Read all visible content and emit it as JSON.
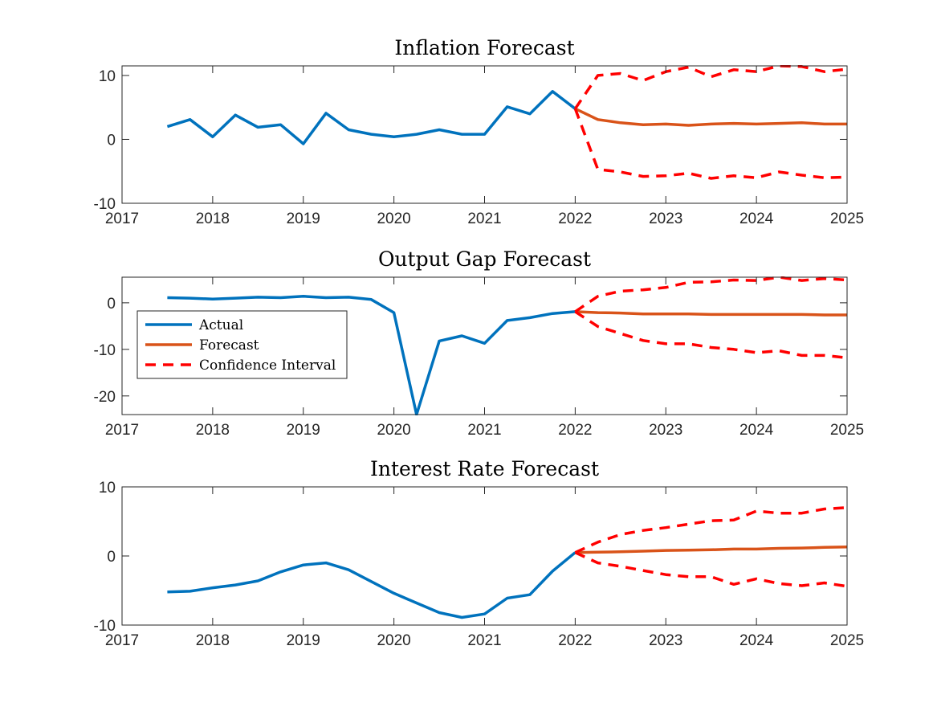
{
  "chart_data": [
    {
      "type": "line",
      "title": "Inflation Forecast",
      "xlabel": "",
      "ylabel": "",
      "xlim": [
        2017,
        2025
      ],
      "ylim": [
        -10,
        11.5
      ],
      "xticks": [
        "2017",
        "2018",
        "2019",
        "2020",
        "2021",
        "2022",
        "2023",
        "2024",
        "2025"
      ],
      "yticks": [
        -10,
        0,
        10
      ],
      "ytick_labels": [
        "-10",
        "0",
        "10"
      ],
      "grid": false,
      "series": [
        {
          "name": "Actual",
          "color": "#0072BD",
          "style": "solid",
          "x": [
            2017.5,
            2017.75,
            2018.0,
            2018.25,
            2018.5,
            2018.75,
            2019.0,
            2019.25,
            2019.5,
            2019.75,
            2020.0,
            2020.25,
            2020.5,
            2020.75,
            2021.0,
            2021.25,
            2021.5,
            2021.75,
            2022.0
          ],
          "y": [
            2.0,
            3.1,
            0.4,
            3.8,
            1.9,
            2.3,
            -0.7,
            4.1,
            1.5,
            0.8,
            0.4,
            0.8,
            1.5,
            0.8,
            0.8,
            5.1,
            4.0,
            7.5,
            4.8
          ]
        },
        {
          "name": "Forecast",
          "color": "#D95319",
          "style": "solid",
          "x": [
            2022.0,
            2022.25,
            2022.5,
            2022.75,
            2023.0,
            2023.25,
            2023.5,
            2023.75,
            2024.0,
            2024.25,
            2024.5,
            2024.75,
            2025.0
          ],
          "y": [
            4.8,
            3.1,
            2.6,
            2.3,
            2.4,
            2.2,
            2.4,
            2.5,
            2.4,
            2.5,
            2.6,
            2.4,
            2.4
          ]
        },
        {
          "name": "Confidence Interval",
          "color": "#FF0000",
          "style": "dashed",
          "x": [
            2022.0,
            2022.25,
            2022.5,
            2022.75,
            2023.0,
            2023.25,
            2023.5,
            2023.75,
            2024.0,
            2024.25,
            2024.5,
            2024.75,
            2025.0
          ],
          "y": [
            4.8,
            10.0,
            10.3,
            9.2,
            10.6,
            11.3,
            9.8,
            10.9,
            10.6,
            11.5,
            11.4,
            10.6,
            11.0
          ]
        },
        {
          "name": "Confidence Interval",
          "color": "#FF0000",
          "style": "dashed",
          "x": [
            2022.0,
            2022.25,
            2022.5,
            2022.75,
            2023.0,
            2023.25,
            2023.5,
            2023.75,
            2024.0,
            2024.25,
            2024.5,
            2024.75,
            2025.0
          ],
          "y": [
            4.8,
            -4.7,
            -5.1,
            -5.8,
            -5.7,
            -5.3,
            -6.1,
            -5.7,
            -6.0,
            -5.1,
            -5.6,
            -6.0,
            -5.9
          ]
        }
      ]
    },
    {
      "type": "line",
      "title": "Output Gap Forecast",
      "xlabel": "",
      "ylabel": "",
      "xlim": [
        2017,
        2025
      ],
      "ylim": [
        -24,
        5.5
      ],
      "xticks": [
        "2017",
        "2018",
        "2019",
        "2020",
        "2021",
        "2022",
        "2023",
        "2024",
        "2025"
      ],
      "yticks": [
        -20,
        -10,
        0
      ],
      "ytick_labels": [
        "-20",
        "-10",
        "0"
      ],
      "grid": false,
      "legend": {
        "location": "west",
        "entries": [
          {
            "label": "Actual",
            "color": "#0072BD",
            "style": "solid"
          },
          {
            "label": "Forecast",
            "color": "#D95319",
            "style": "solid"
          },
          {
            "label": "Confidence Interval",
            "color": "#FF0000",
            "style": "dashed"
          }
        ]
      },
      "series": [
        {
          "name": "Actual",
          "color": "#0072BD",
          "style": "solid",
          "x": [
            2017.5,
            2017.75,
            2018.0,
            2018.25,
            2018.5,
            2018.75,
            2019.0,
            2019.25,
            2019.5,
            2019.75,
            2020.0,
            2020.25,
            2020.5,
            2020.75,
            2021.0,
            2021.25,
            2021.5,
            2021.75,
            2022.0
          ],
          "y": [
            1.1,
            1.0,
            0.8,
            1.0,
            1.2,
            1.1,
            1.4,
            1.1,
            1.2,
            0.7,
            -2.1,
            -24.0,
            -8.2,
            -7.1,
            -8.7,
            -3.8,
            -3.2,
            -2.3,
            -1.9
          ]
        },
        {
          "name": "Forecast",
          "color": "#D95319",
          "style": "solid",
          "x": [
            2022.0,
            2022.25,
            2022.5,
            2022.75,
            2023.0,
            2023.25,
            2023.5,
            2023.75,
            2024.0,
            2024.25,
            2024.5,
            2024.75,
            2025.0
          ],
          "y": [
            -1.9,
            -2.1,
            -2.2,
            -2.4,
            -2.4,
            -2.4,
            -2.5,
            -2.5,
            -2.5,
            -2.5,
            -2.5,
            -2.6,
            -2.6
          ]
        },
        {
          "name": "Confidence Interval",
          "color": "#FF0000",
          "style": "dashed",
          "x": [
            2022.0,
            2022.25,
            2022.5,
            2022.75,
            2023.0,
            2023.25,
            2023.5,
            2023.75,
            2024.0,
            2024.25,
            2024.5,
            2024.75,
            2025.0
          ],
          "y": [
            -1.9,
            1.4,
            2.5,
            2.8,
            3.3,
            4.4,
            4.5,
            4.9,
            4.8,
            5.5,
            4.8,
            5.2,
            4.9
          ]
        },
        {
          "name": "Confidence Interval",
          "color": "#FF0000",
          "style": "dashed",
          "x": [
            2022.0,
            2022.25,
            2022.5,
            2022.75,
            2023.0,
            2023.25,
            2023.5,
            2023.75,
            2024.0,
            2024.25,
            2024.5,
            2024.75,
            2025.0
          ],
          "y": [
            -1.9,
            -5.1,
            -6.6,
            -8.1,
            -8.8,
            -8.8,
            -9.6,
            -10.0,
            -10.7,
            -10.3,
            -11.3,
            -11.3,
            -11.8
          ]
        }
      ]
    },
    {
      "type": "line",
      "title": "Interest Rate Forecast",
      "xlabel": "",
      "ylabel": "",
      "xlim": [
        2017,
        2025
      ],
      "ylim": [
        -10,
        10
      ],
      "xticks": [
        "2017",
        "2018",
        "2019",
        "2020",
        "2021",
        "2022",
        "2023",
        "2024",
        "2025"
      ],
      "yticks": [
        -10,
        0,
        10
      ],
      "ytick_labels": [
        "-10",
        "0",
        "10"
      ],
      "grid": false,
      "series": [
        {
          "name": "Actual",
          "color": "#0072BD",
          "style": "solid",
          "x": [
            2017.5,
            2017.75,
            2018.0,
            2018.25,
            2018.5,
            2018.75,
            2019.0,
            2019.25,
            2019.5,
            2019.75,
            2020.0,
            2020.25,
            2020.5,
            2020.75,
            2021.0,
            2021.25,
            2021.5,
            2021.75,
            2022.0
          ],
          "y": [
            -5.2,
            -5.1,
            -4.6,
            -4.2,
            -3.6,
            -2.3,
            -1.3,
            -1.0,
            -2.0,
            -3.7,
            -5.4,
            -6.8,
            -8.2,
            -8.9,
            -8.4,
            -6.1,
            -5.6,
            -2.2,
            0.5
          ]
        },
        {
          "name": "Forecast",
          "color": "#D95319",
          "style": "solid",
          "x": [
            2022.0,
            2022.25,
            2022.5,
            2022.75,
            2023.0,
            2023.25,
            2023.5,
            2023.75,
            2024.0,
            2024.25,
            2024.5,
            2024.75,
            2025.0
          ],
          "y": [
            0.5,
            0.55,
            0.6,
            0.7,
            0.8,
            0.85,
            0.9,
            1.0,
            1.0,
            1.1,
            1.15,
            1.25,
            1.3
          ]
        },
        {
          "name": "Confidence Interval",
          "color": "#FF0000",
          "style": "dashed",
          "x": [
            2022.0,
            2022.25,
            2022.5,
            2022.75,
            2023.0,
            2023.25,
            2023.5,
            2023.75,
            2024.0,
            2024.25,
            2024.5,
            2024.75,
            2025.0
          ],
          "y": [
            0.5,
            2.0,
            3.1,
            3.7,
            4.1,
            4.6,
            5.1,
            5.2,
            6.5,
            6.2,
            6.2,
            6.8,
            7.0
          ]
        },
        {
          "name": "Confidence Interval",
          "color": "#FF0000",
          "style": "dashed",
          "x": [
            2022.0,
            2022.25,
            2022.5,
            2022.75,
            2023.0,
            2023.25,
            2023.5,
            2023.75,
            2024.0,
            2024.25,
            2024.5,
            2024.75,
            2025.0
          ],
          "y": [
            0.5,
            -1.0,
            -1.5,
            -2.1,
            -2.7,
            -3.0,
            -3.0,
            -4.1,
            -3.3,
            -4.0,
            -4.3,
            -3.9,
            -4.4
          ]
        }
      ]
    }
  ]
}
